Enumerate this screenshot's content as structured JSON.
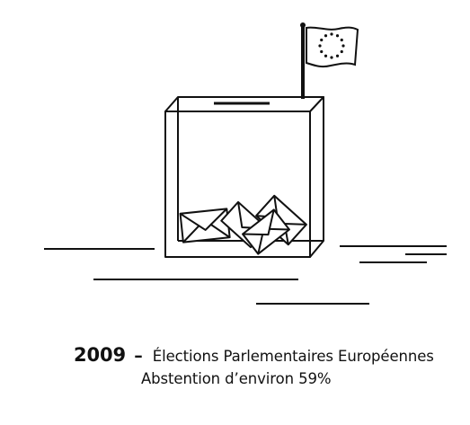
{
  "caption": {
    "year": "2009",
    "dash": "–",
    "title": "Élections Parlementaires Européennes",
    "subtitle": "Abstention d’environ 59%"
  },
  "illustration": {
    "icons": [
      "ballot-box-icon",
      "eu-flag-icon",
      "envelope-icon"
    ],
    "flag_star_count": 12,
    "envelope_count": 4,
    "colors": {
      "ink": "#111111",
      "background": "#ffffff"
    }
  }
}
